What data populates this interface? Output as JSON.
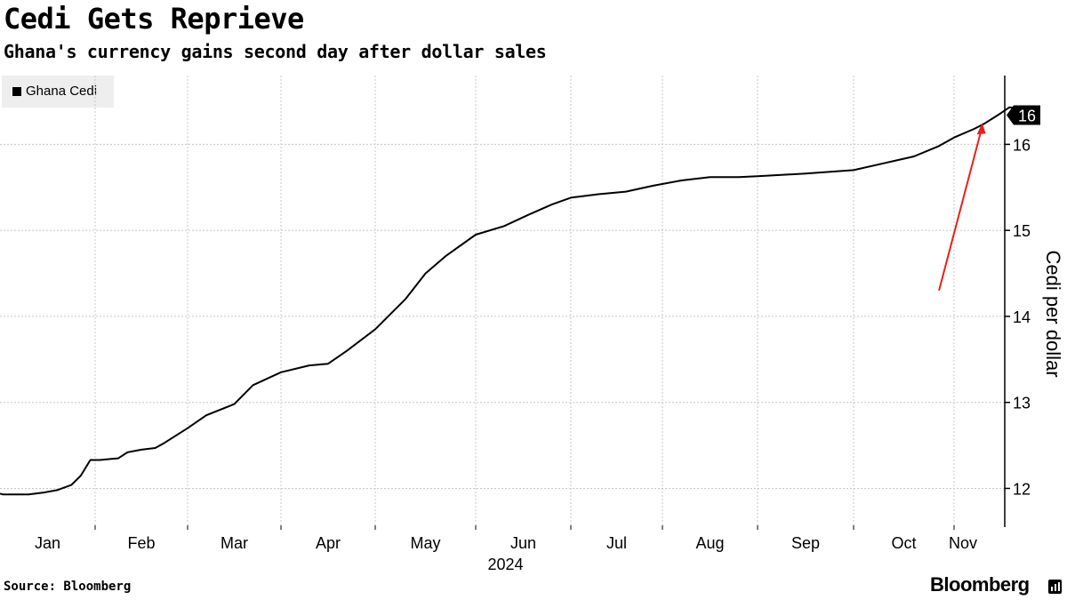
{
  "header": {
    "title": "Cedi Gets Reprieve",
    "subtitle": "Ghana's currency gains second day after dollar sales"
  },
  "footer": {
    "source": "Source: Bloomberg",
    "brand": "Bloomberg"
  },
  "chart_data": {
    "type": "line",
    "title": "Cedi Gets Reprieve",
    "subtitle": "Ghana's currency gains second day after dollar sales",
    "xlabel": "2024",
    "ylabel": "Cedi per dollar",
    "ylim": [
      11.55,
      16.8
    ],
    "y_ticks": [
      12,
      13,
      14,
      15,
      16
    ],
    "x_tick_labels": [
      "Jan",
      "Feb",
      "Mar",
      "Apr",
      "May",
      "Jun",
      "Jul",
      "Aug",
      "Sep",
      "Oct",
      "Nov"
    ],
    "x_year_label": "2024",
    "legend": [
      "Ghana Cedi"
    ],
    "last_value_label": "16",
    "annotation": "red arrow pointing to latest value",
    "colors": {
      "line": "#000000",
      "arrow": "#e8201a",
      "grid": "#c8c8c8"
    },
    "series": [
      {
        "name": "Ghana Cedi",
        "x": [
          0,
          0.03,
          0.3,
          0.45,
          0.6,
          0.75,
          0.85,
          0.95,
          1.05,
          1.25,
          1.35,
          1.5,
          1.65,
          1.75,
          2.0,
          2.2,
          2.5,
          2.7,
          3.0,
          3.3,
          3.5,
          3.7,
          4.0,
          4.3,
          4.5,
          4.7,
          5.0,
          5.3,
          5.55,
          5.8,
          6.0,
          6.3,
          6.6,
          6.9,
          7.2,
          7.5,
          7.8,
          8.0,
          8.5,
          9.0,
          9.3,
          9.6,
          9.85,
          10.0,
          10.2,
          10.3,
          10.45,
          10.55,
          10.65,
          10.75
        ],
        "values": [
          11.94,
          11.93,
          11.93,
          11.95,
          11.98,
          12.04,
          12.15,
          12.33,
          12.33,
          12.35,
          12.42,
          12.45,
          12.47,
          12.53,
          12.7,
          12.85,
          12.98,
          13.2,
          13.35,
          13.43,
          13.45,
          13.6,
          13.85,
          14.2,
          14.5,
          14.7,
          14.95,
          15.05,
          15.18,
          15.3,
          15.38,
          15.42,
          15.45,
          15.52,
          15.58,
          15.62,
          15.62,
          15.63,
          15.66,
          15.7,
          15.78,
          15.86,
          15.98,
          16.08,
          16.18,
          16.24,
          16.35,
          16.43,
          16.42,
          16.34
        ]
      }
    ]
  }
}
